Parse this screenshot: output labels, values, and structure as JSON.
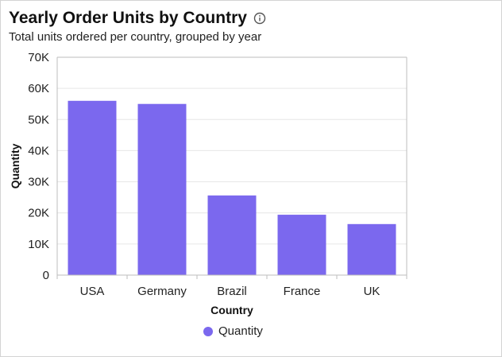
{
  "header": {
    "title": "Yearly Order Units by Country",
    "subtitle": "Total units ordered per country, grouped by year",
    "info_icon": "info-circle-icon"
  },
  "colors": {
    "bar": "#7b68ee",
    "grid": "#e6e6e6",
    "axis": "#bdbdbd"
  },
  "chart_data": {
    "type": "bar",
    "categories": [
      "USA",
      "Germany",
      "Brazil",
      "France",
      "UK"
    ],
    "series": [
      {
        "name": "Quantity",
        "values": [
          56000,
          55000,
          25600,
          19400,
          16400
        ]
      }
    ],
    "xlabel": "Country",
    "ylabel": "Quantity",
    "ylim": [
      0,
      70000
    ],
    "yticks": [
      0,
      10000,
      20000,
      30000,
      40000,
      50000,
      60000,
      70000
    ],
    "ytick_labels": [
      "0",
      "10K",
      "20K",
      "30K",
      "40K",
      "50K",
      "60K",
      "70K"
    ],
    "grid": true,
    "legend_position": "bottom-center"
  }
}
